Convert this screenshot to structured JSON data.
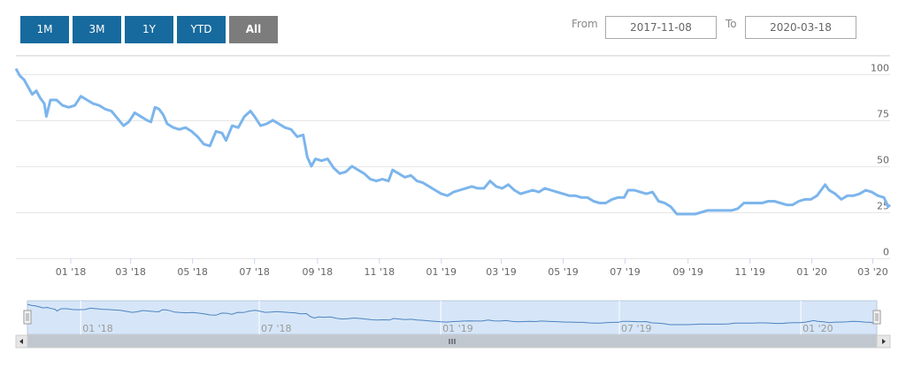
{
  "range_selector": {
    "buttons": [
      {
        "label": "1M",
        "active": false
      },
      {
        "label": "3M",
        "active": false
      },
      {
        "label": "1Y",
        "active": false
      },
      {
        "label": "YTD",
        "active": false
      },
      {
        "label": "All",
        "active": true
      }
    ],
    "from_label": "From",
    "from_value": "2017-11-08",
    "to_label": "To",
    "to_value": "2020-03-18"
  },
  "colors": {
    "button_bg": "#176a9d",
    "button_active_bg": "#7c7c7c",
    "series_line": "#7cb5ec",
    "navigator_fill": "#d6e6f8",
    "navigator_line": "#4e83c0",
    "scrollbar_track": "#f2f2f2",
    "scrollbar_thumb": "#c0c7cf",
    "grid": "#e6e6e6"
  },
  "chart_data": {
    "type": "line",
    "x_start": "2017-11-08",
    "x_end": "2020-03-18",
    "ylim": [
      0,
      110
    ],
    "y_ticks": [
      0,
      25,
      50,
      75,
      100
    ],
    "x_ticks": [
      {
        "label": "01 '18",
        "date": "2018-01-01"
      },
      {
        "label": "03 '18",
        "date": "2018-03-01"
      },
      {
        "label": "05 '18",
        "date": "2018-05-01"
      },
      {
        "label": "07 '18",
        "date": "2018-07-01"
      },
      {
        "label": "09 '18",
        "date": "2018-09-01"
      },
      {
        "label": "11 '18",
        "date": "2018-11-01"
      },
      {
        "label": "01 '19",
        "date": "2019-01-01"
      },
      {
        "label": "03 '19",
        "date": "2019-03-01"
      },
      {
        "label": "05 '19",
        "date": "2019-05-01"
      },
      {
        "label": "07 '19",
        "date": "2019-07-01"
      },
      {
        "label": "09 '19",
        "date": "2019-09-01"
      },
      {
        "label": "11 '19",
        "date": "2019-11-01"
      },
      {
        "label": "01 '20",
        "date": "2020-01-01"
      },
      {
        "label": "03 '20",
        "date": "2020-03-01"
      }
    ],
    "navigator_ticks": [
      {
        "label": "01 '18",
        "date": "2018-01-01"
      },
      {
        "label": "07 '18",
        "date": "2018-07-01"
      },
      {
        "label": "01 '19",
        "date": "2019-01-01"
      },
      {
        "label": "07 '19",
        "date": "2019-07-01"
      },
      {
        "label": "01 '20",
        "date": "2020-01-01"
      }
    ],
    "grid": true,
    "series": [
      {
        "points": [
          [
            "2017-11-08",
            103
          ],
          [
            "2017-11-12",
            99
          ],
          [
            "2017-11-16",
            97
          ],
          [
            "2017-11-20",
            93
          ],
          [
            "2017-11-24",
            89
          ],
          [
            "2017-11-28",
            91
          ],
          [
            "2017-12-02",
            87
          ],
          [
            "2017-12-06",
            84
          ],
          [
            "2017-12-08",
            77
          ],
          [
            "2017-12-12",
            86
          ],
          [
            "2017-12-18",
            86
          ],
          [
            "2017-12-24",
            83
          ],
          [
            "2017-12-30",
            82
          ],
          [
            "2018-01-05",
            83
          ],
          [
            "2018-01-11",
            88
          ],
          [
            "2018-01-17",
            86
          ],
          [
            "2018-01-23",
            84
          ],
          [
            "2018-01-29",
            83
          ],
          [
            "2018-02-04",
            81
          ],
          [
            "2018-02-10",
            80
          ],
          [
            "2018-02-16",
            76
          ],
          [
            "2018-02-22",
            72
          ],
          [
            "2018-02-27",
            74
          ],
          [
            "2018-03-05",
            79
          ],
          [
            "2018-03-11",
            77
          ],
          [
            "2018-03-17",
            75
          ],
          [
            "2018-03-21",
            74
          ],
          [
            "2018-03-25",
            82
          ],
          [
            "2018-03-29",
            81
          ],
          [
            "2018-04-02",
            78
          ],
          [
            "2018-04-06",
            73
          ],
          [
            "2018-04-12",
            71
          ],
          [
            "2018-04-18",
            70
          ],
          [
            "2018-04-24",
            71
          ],
          [
            "2018-04-30",
            69
          ],
          [
            "2018-05-06",
            66
          ],
          [
            "2018-05-12",
            62
          ],
          [
            "2018-05-18",
            61
          ],
          [
            "2018-05-24",
            69
          ],
          [
            "2018-05-30",
            68
          ],
          [
            "2018-06-03",
            64
          ],
          [
            "2018-06-09",
            72
          ],
          [
            "2018-06-15",
            71
          ],
          [
            "2018-06-21",
            77
          ],
          [
            "2018-06-27",
            80
          ],
          [
            "2018-07-01",
            77
          ],
          [
            "2018-07-07",
            72
          ],
          [
            "2018-07-13",
            73
          ],
          [
            "2018-07-19",
            75
          ],
          [
            "2018-07-25",
            73
          ],
          [
            "2018-07-31",
            71
          ],
          [
            "2018-08-06",
            70
          ],
          [
            "2018-08-12",
            66
          ],
          [
            "2018-08-18",
            67
          ],
          [
            "2018-08-22",
            55
          ],
          [
            "2018-08-26",
            50
          ],
          [
            "2018-08-30",
            54
          ],
          [
            "2018-09-05",
            53
          ],
          [
            "2018-09-11",
            54
          ],
          [
            "2018-09-17",
            49
          ],
          [
            "2018-09-23",
            46
          ],
          [
            "2018-09-29",
            47
          ],
          [
            "2018-10-05",
            50
          ],
          [
            "2018-10-11",
            48
          ],
          [
            "2018-10-17",
            46
          ],
          [
            "2018-10-23",
            43
          ],
          [
            "2018-10-29",
            42
          ],
          [
            "2018-11-04",
            43
          ],
          [
            "2018-11-10",
            42
          ],
          [
            "2018-11-14",
            48
          ],
          [
            "2018-11-20",
            46
          ],
          [
            "2018-11-26",
            44
          ],
          [
            "2018-12-02",
            45
          ],
          [
            "2018-12-08",
            42
          ],
          [
            "2018-12-14",
            41
          ],
          [
            "2018-12-20",
            39
          ],
          [
            "2018-12-26",
            37
          ],
          [
            "2019-01-01",
            35
          ],
          [
            "2019-01-07",
            34
          ],
          [
            "2019-01-13",
            36
          ],
          [
            "2019-01-19",
            37
          ],
          [
            "2019-01-25",
            38
          ],
          [
            "2019-01-31",
            39
          ],
          [
            "2019-02-06",
            38
          ],
          [
            "2019-02-12",
            38
          ],
          [
            "2019-02-18",
            42
          ],
          [
            "2019-02-24",
            39
          ],
          [
            "2019-03-02",
            38
          ],
          [
            "2019-03-08",
            40
          ],
          [
            "2019-03-14",
            37
          ],
          [
            "2019-03-20",
            35
          ],
          [
            "2019-03-26",
            36
          ],
          [
            "2019-04-01",
            37
          ],
          [
            "2019-04-07",
            36
          ],
          [
            "2019-04-13",
            38
          ],
          [
            "2019-04-19",
            37
          ],
          [
            "2019-04-25",
            36
          ],
          [
            "2019-05-01",
            35
          ],
          [
            "2019-05-07",
            34
          ],
          [
            "2019-05-13",
            34
          ],
          [
            "2019-05-19",
            33
          ],
          [
            "2019-05-25",
            33
          ],
          [
            "2019-05-31",
            31
          ],
          [
            "2019-06-06",
            30
          ],
          [
            "2019-06-12",
            30
          ],
          [
            "2019-06-18",
            32
          ],
          [
            "2019-06-24",
            33
          ],
          [
            "2019-06-30",
            33
          ],
          [
            "2019-07-04",
            37
          ],
          [
            "2019-07-10",
            37
          ],
          [
            "2019-07-16",
            36
          ],
          [
            "2019-07-22",
            35
          ],
          [
            "2019-07-28",
            36
          ],
          [
            "2019-08-03",
            31
          ],
          [
            "2019-08-09",
            30
          ],
          [
            "2019-08-15",
            28
          ],
          [
            "2019-08-21",
            24
          ],
          [
            "2019-08-27",
            24
          ],
          [
            "2019-09-02",
            24
          ],
          [
            "2019-09-08",
            24
          ],
          [
            "2019-09-14",
            25
          ],
          [
            "2019-09-20",
            26
          ],
          [
            "2019-09-26",
            26
          ],
          [
            "2019-10-02",
            26
          ],
          [
            "2019-10-08",
            26
          ],
          [
            "2019-10-14",
            26
          ],
          [
            "2019-10-20",
            27
          ],
          [
            "2019-10-26",
            30
          ],
          [
            "2019-11-01",
            30
          ],
          [
            "2019-11-07",
            30
          ],
          [
            "2019-11-13",
            30
          ],
          [
            "2019-11-19",
            31
          ],
          [
            "2019-11-25",
            31
          ],
          [
            "2019-12-01",
            30
          ],
          [
            "2019-12-07",
            29
          ],
          [
            "2019-12-13",
            29
          ],
          [
            "2019-12-19",
            31
          ],
          [
            "2019-12-25",
            32
          ],
          [
            "2019-12-31",
            32
          ],
          [
            "2020-01-06",
            34
          ],
          [
            "2020-01-10",
            37
          ],
          [
            "2020-01-14",
            40
          ],
          [
            "2020-01-18",
            37
          ],
          [
            "2020-01-24",
            35
          ],
          [
            "2020-01-30",
            32
          ],
          [
            "2020-02-05",
            34
          ],
          [
            "2020-02-11",
            34
          ],
          [
            "2020-02-17",
            35
          ],
          [
            "2020-02-23",
            37
          ],
          [
            "2020-02-29",
            36
          ],
          [
            "2020-03-06",
            34
          ],
          [
            "2020-03-12",
            33
          ],
          [
            "2020-03-16",
            28
          ],
          [
            "2020-03-18",
            29
          ]
        ]
      }
    ]
  }
}
